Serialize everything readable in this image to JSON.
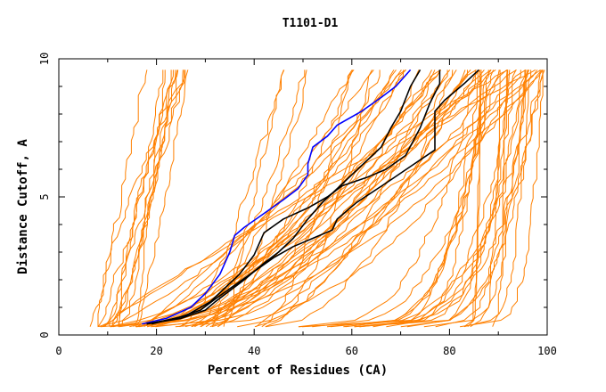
{
  "chart_data": {
    "type": "line",
    "title": "T1101-D1",
    "xlabel": "Percent of Residues (CA)",
    "ylabel": "Distance Cutoff, A",
    "xlim": [
      0,
      100
    ],
    "ylim": [
      0,
      10
    ],
    "xticks": [
      0,
      20,
      40,
      60,
      80,
      100
    ],
    "yticks": [
      0,
      5,
      10
    ],
    "grid": false,
    "colors": {
      "background_models": "#ff8000",
      "highlight_blue": "#0000ff",
      "highlight_black": "#000000"
    },
    "series": [
      {
        "color": "#0000ff",
        "points": [
          [
            17,
            0.4
          ],
          [
            22,
            0.6
          ],
          [
            27,
            1.0
          ],
          [
            30,
            1.5
          ],
          [
            33,
            2.2
          ],
          [
            35,
            3.0
          ],
          [
            36,
            3.6
          ],
          [
            38,
            3.9
          ],
          [
            42,
            4.4
          ],
          [
            46,
            4.9
          ],
          [
            49,
            5.3
          ],
          [
            51,
            5.8
          ],
          [
            51,
            6.2
          ],
          [
            52,
            6.8
          ],
          [
            55,
            7.2
          ],
          [
            57,
            7.6
          ],
          [
            62,
            8.1
          ],
          [
            66,
            8.6
          ],
          [
            69,
            9.0
          ],
          [
            72,
            9.6
          ]
        ]
      },
      {
        "color": "#000000",
        "points": [
          [
            18,
            0.4
          ],
          [
            25,
            0.6
          ],
          [
            30,
            0.9
          ],
          [
            32,
            1.2
          ],
          [
            35,
            1.6
          ],
          [
            38,
            2.0
          ],
          [
            42,
            2.6
          ],
          [
            45,
            3.0
          ],
          [
            48,
            3.5
          ],
          [
            51,
            4.2
          ],
          [
            54,
            4.8
          ],
          [
            57,
            5.3
          ],
          [
            60,
            5.8
          ],
          [
            63,
            6.3
          ],
          [
            66,
            6.8
          ],
          [
            68,
            7.5
          ],
          [
            70,
            8.1
          ],
          [
            72,
            9.0
          ],
          [
            74,
            9.6
          ]
        ]
      },
      {
        "color": "#000000",
        "points": [
          [
            19,
            0.4
          ],
          [
            26,
            0.7
          ],
          [
            31,
            1.2
          ],
          [
            34,
            1.7
          ],
          [
            37,
            2.2
          ],
          [
            40,
            2.9
          ],
          [
            41,
            3.3
          ],
          [
            42,
            3.7
          ],
          [
            46,
            4.2
          ],
          [
            51,
            4.6
          ],
          [
            55,
            5.0
          ],
          [
            58,
            5.4
          ],
          [
            63,
            5.7
          ],
          [
            67,
            6.0
          ],
          [
            71,
            6.5
          ],
          [
            74,
            7.5
          ],
          [
            76,
            8.4
          ],
          [
            78,
            9.1
          ],
          [
            78,
            9.6
          ]
        ]
      },
      {
        "color": "#000000",
        "points": [
          [
            18,
            0.4
          ],
          [
            24,
            0.6
          ],
          [
            29,
            0.9
          ],
          [
            32,
            1.3
          ],
          [
            36,
            1.8
          ],
          [
            40,
            2.3
          ],
          [
            44,
            2.8
          ],
          [
            48,
            3.2
          ],
          [
            52,
            3.5
          ],
          [
            56,
            3.8
          ],
          [
            57,
            4.2
          ],
          [
            61,
            4.8
          ],
          [
            67,
            5.5
          ],
          [
            72,
            6.1
          ],
          [
            77,
            6.7
          ],
          [
            77,
            7.5
          ],
          [
            77,
            8.1
          ],
          [
            79,
            8.5
          ],
          [
            81,
            8.8
          ],
          [
            83,
            9.1
          ],
          [
            86,
            9.6
          ]
        ]
      }
    ],
    "background_series_count": 80
  }
}
